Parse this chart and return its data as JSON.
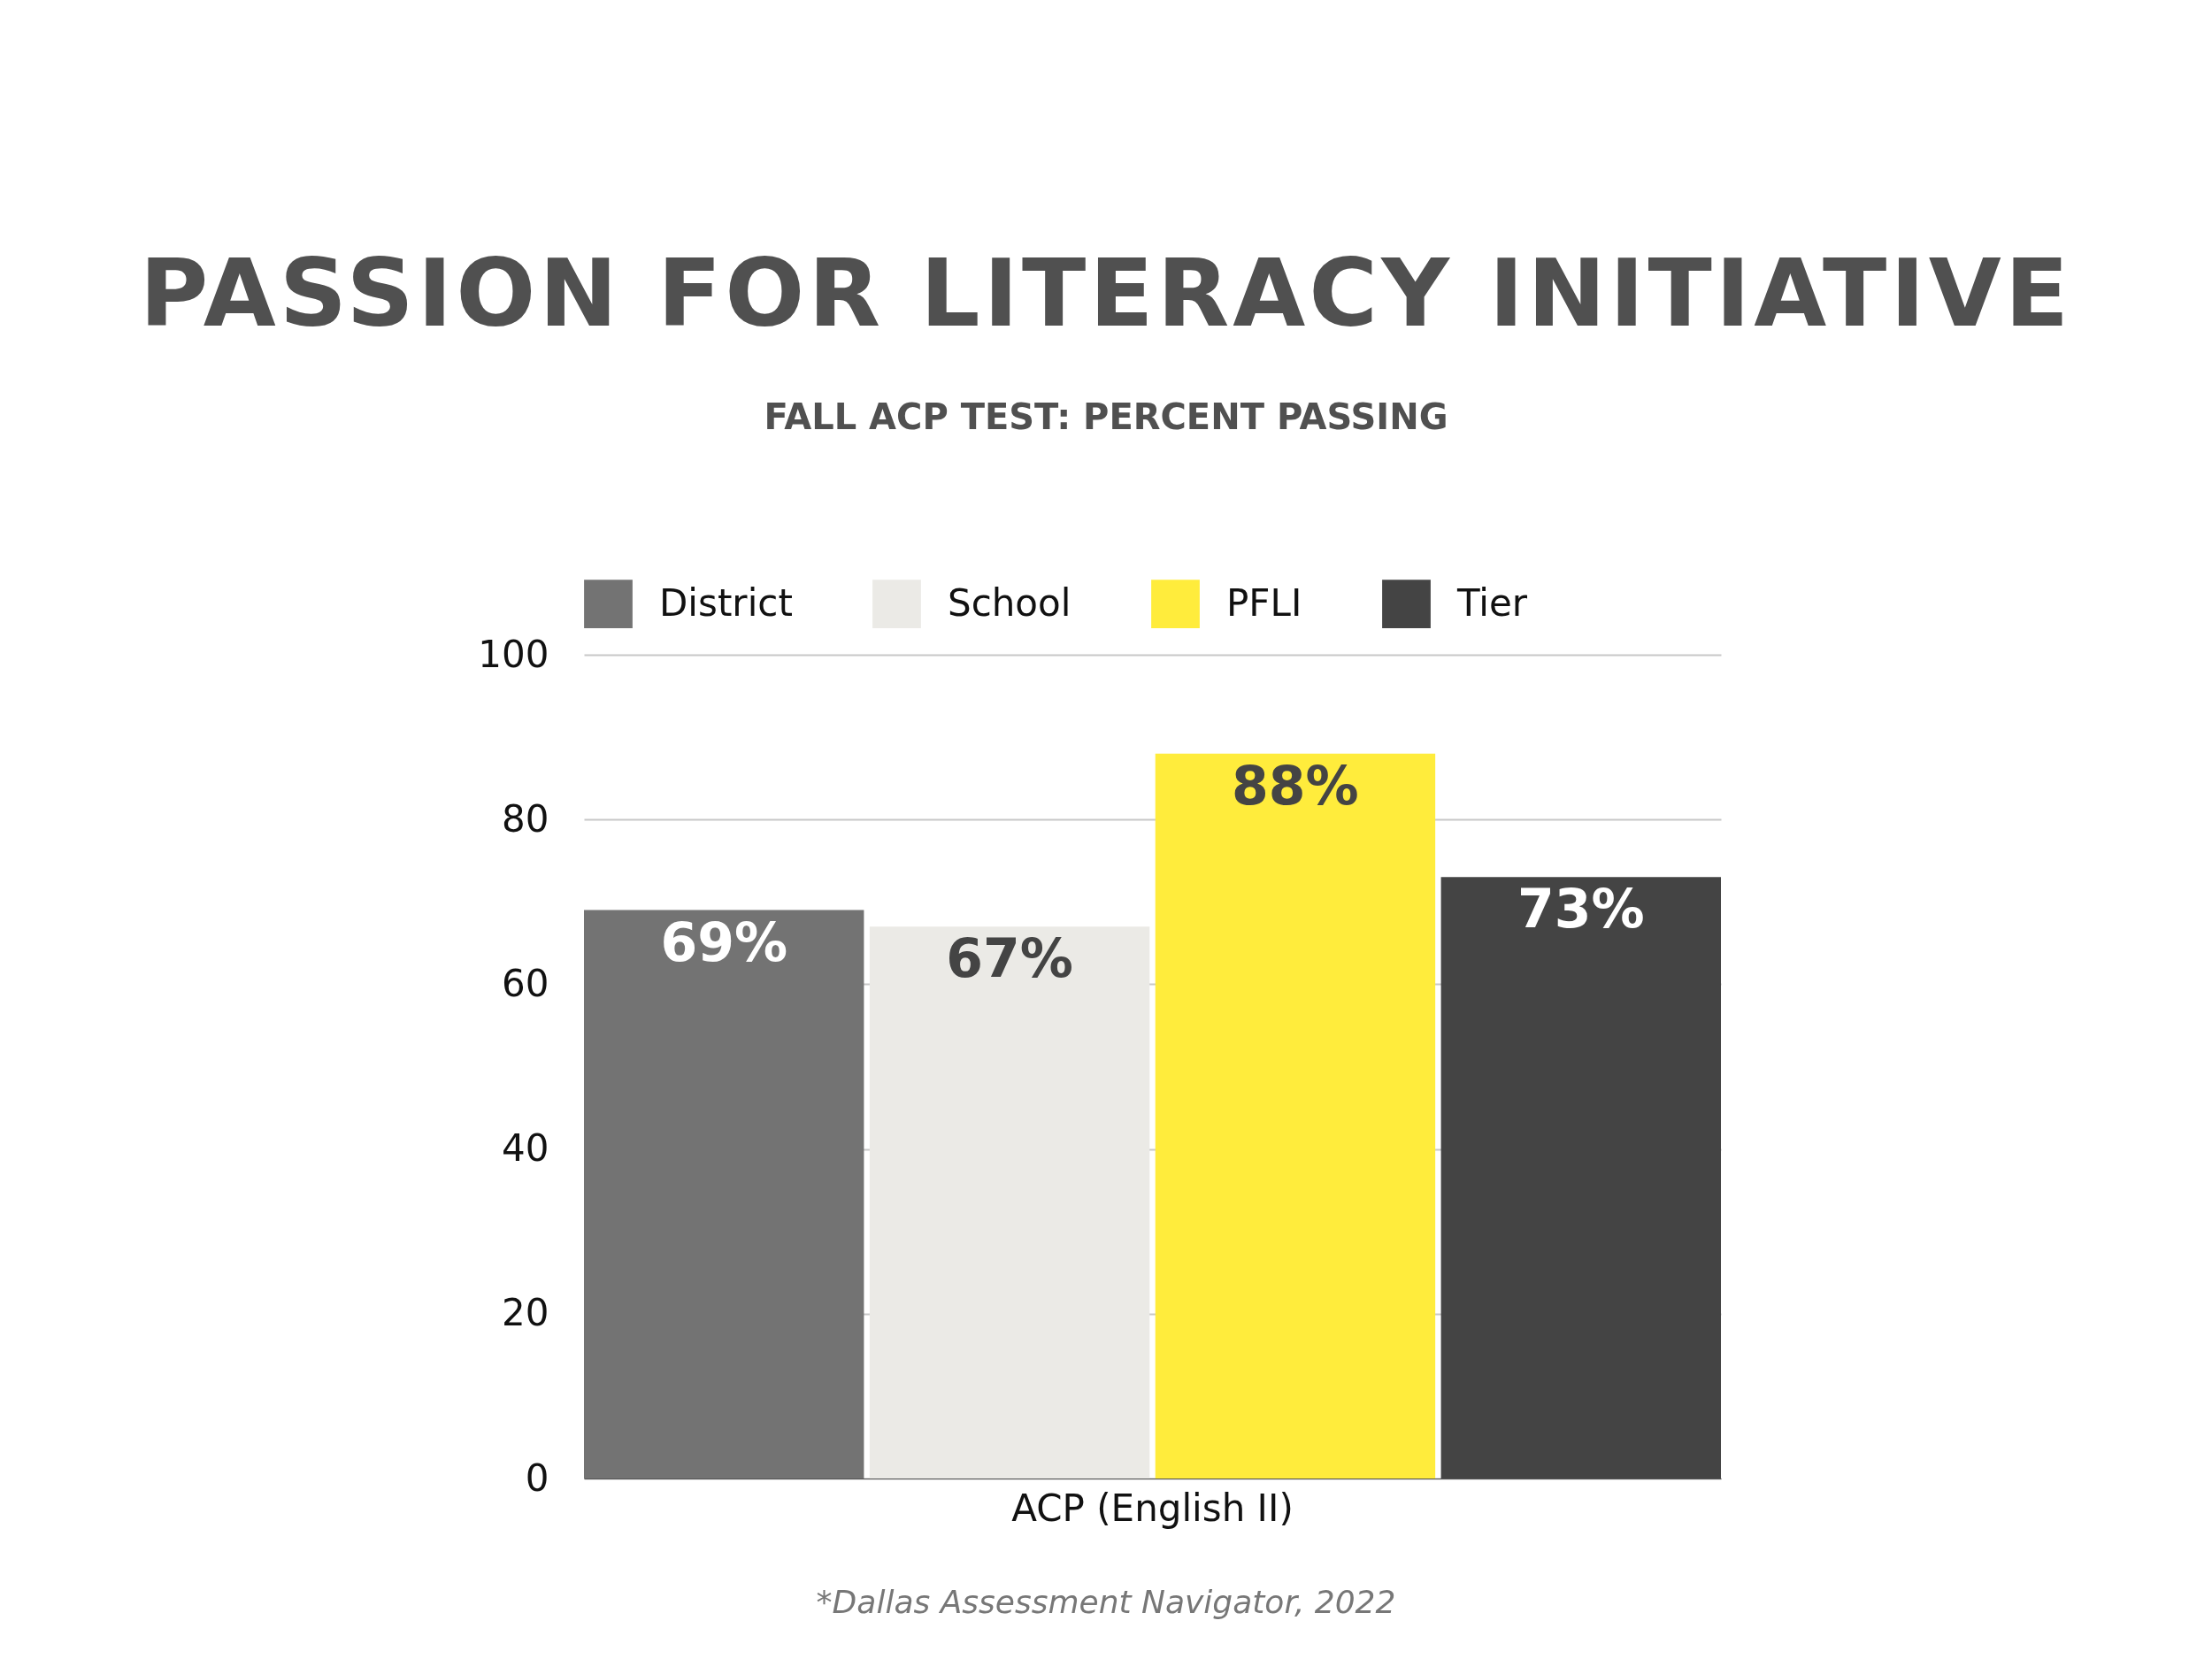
{
  "chart_data": {
    "type": "bar",
    "title": "PASSION FOR LITERACY INITIATIVE",
    "subtitle": "FALL ACP TEST: PERCENT PASSING",
    "categories": [
      "ACP (English II)"
    ],
    "series": [
      {
        "name": "District",
        "color": "#737373",
        "values": [
          69
        ],
        "value_labels": [
          "69%"
        ]
      },
      {
        "name": "School",
        "color": "#ebeae6",
        "values": [
          67
        ],
        "value_labels": [
          "67%"
        ]
      },
      {
        "name": "PFLI",
        "color": "#ffec3c",
        "values": [
          88
        ],
        "value_labels": [
          "88%"
        ]
      },
      {
        "name": "Tier",
        "color": "#444444",
        "values": [
          73
        ],
        "value_labels": [
          "73%"
        ]
      }
    ],
    "ylim": [
      0,
      100
    ],
    "yticks": [
      0,
      20,
      40,
      60,
      80,
      100
    ],
    "grid": "y",
    "legend": "top",
    "annotations": [
      "*Dallas Assessment Navigator, 2022"
    ]
  }
}
